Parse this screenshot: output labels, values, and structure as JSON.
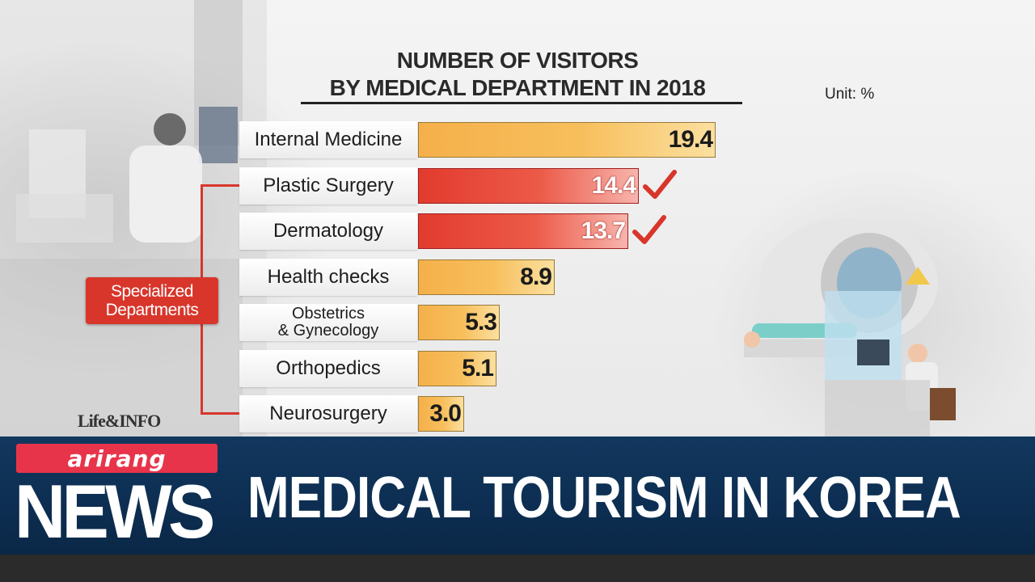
{
  "chart_data": {
    "type": "bar",
    "title": "NUMBER OF VISITORS BY MEDICAL DEPARTMENT IN 2018",
    "title_lines": [
      "NUMBER OF VISITORS",
      "BY MEDICAL DEPARTMENT IN 2018"
    ],
    "unit": "Unit: %",
    "orientation": "horizontal",
    "categories": [
      "Internal Medicine",
      "Plastic Surgery",
      "Dermatology",
      "Health checks",
      "Obstetrics & Gynecology",
      "Orthopedics",
      "Neurosurgery"
    ],
    "category_lines": [
      [
        "Internal Medicine"
      ],
      [
        "Plastic Surgery"
      ],
      [
        "Dermatology"
      ],
      [
        "Health checks"
      ],
      [
        "Obstetrics",
        "& Gynecology"
      ],
      [
        "Orthopedics"
      ],
      [
        "Neurosurgery"
      ]
    ],
    "values": [
      19.4,
      14.4,
      13.7,
      8.9,
      5.3,
      5.1,
      3.0
    ],
    "value_labels": [
      "19.4",
      "14.4",
      "13.7",
      "8.9",
      "5.3",
      "5.1",
      "3.0"
    ],
    "highlighted": [
      false,
      true,
      true,
      false,
      false,
      false,
      false
    ],
    "checkmarks": [
      false,
      true,
      true,
      false,
      false,
      false,
      false
    ],
    "xlim": [
      0,
      19.4
    ],
    "colors": {
      "normal": "#f5b04a",
      "highlight": "#e23b2e",
      "check": "#d8362b"
    },
    "bracket_label_lines": [
      "Specialized",
      "Departments"
    ],
    "bracket_range": [
      "Plastic Surgery",
      "Neurosurgery"
    ],
    "grid": false,
    "legend": "none"
  },
  "logo": {
    "life_info": "Life&INFO"
  },
  "news_bar": {
    "brand": "arirang",
    "brand_color": "#e8344a",
    "news_label": "NEWS",
    "headline": "MEDICAL TOURISM IN KOREA",
    "bar_color": "#12375e"
  }
}
